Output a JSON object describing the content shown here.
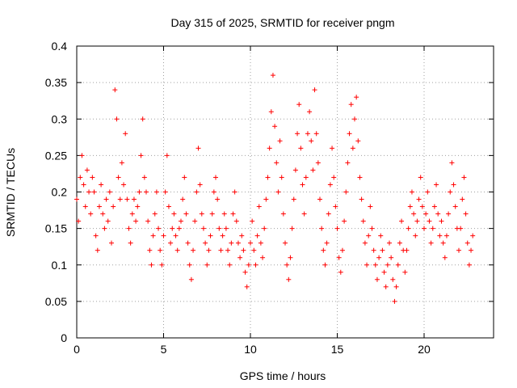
{
  "chart_data": {
    "type": "scatter",
    "title": "Day 315 of 2025, SRMTID for receiver pngm",
    "xlabel": "GPS time / hours",
    "ylabel": "SRMTID / TECUs",
    "xlim": [
      0,
      24
    ],
    "ylim": [
      0,
      0.4
    ],
    "xticks": [
      0,
      5,
      10,
      15,
      20
    ],
    "xtick_labels": [
      "0",
      "5",
      "10",
      "15",
      "20"
    ],
    "yticks": [
      0,
      0.05,
      0.1,
      0.15,
      0.2,
      0.25,
      0.3,
      0.35,
      0.4
    ],
    "ytick_labels": [
      "0",
      "0.05",
      "0.1",
      "0.15",
      "0.2",
      "0.25",
      "0.3",
      "0.35",
      "0.4"
    ],
    "grid": true,
    "marker": "plus",
    "color": "#ff0000",
    "series": [
      {
        "name": "SRMTID",
        "points": [
          [
            0.0,
            0.19
          ],
          [
            0.1,
            0.16
          ],
          [
            0.2,
            0.22
          ],
          [
            0.3,
            0.25
          ],
          [
            0.4,
            0.21
          ],
          [
            0.5,
            0.18
          ],
          [
            0.6,
            0.23
          ],
          [
            0.7,
            0.2
          ],
          [
            0.8,
            0.17
          ],
          [
            0.9,
            0.22
          ],
          [
            1.0,
            0.2
          ],
          [
            1.1,
            0.14
          ],
          [
            1.2,
            0.12
          ],
          [
            1.3,
            0.18
          ],
          [
            1.4,
            0.21
          ],
          [
            1.5,
            0.17
          ],
          [
            1.6,
            0.15
          ],
          [
            1.7,
            0.19
          ],
          [
            1.8,
            0.16
          ],
          [
            1.9,
            0.2
          ],
          [
            2.0,
            0.13
          ],
          [
            2.1,
            0.18
          ],
          [
            2.2,
            0.34
          ],
          [
            2.3,
            0.3
          ],
          [
            2.4,
            0.22
          ],
          [
            2.5,
            0.19
          ],
          [
            2.6,
            0.24
          ],
          [
            2.7,
            0.21
          ],
          [
            2.8,
            0.28
          ],
          [
            2.9,
            0.19
          ],
          [
            3.0,
            0.15
          ],
          [
            3.1,
            0.13
          ],
          [
            3.2,
            0.17
          ],
          [
            3.3,
            0.19
          ],
          [
            3.4,
            0.16
          ],
          [
            3.5,
            0.18
          ],
          [
            3.6,
            0.2
          ],
          [
            3.7,
            0.25
          ],
          [
            3.8,
            0.3
          ],
          [
            3.9,
            0.22
          ],
          [
            4.0,
            0.2
          ],
          [
            4.1,
            0.16
          ],
          [
            4.2,
            0.12
          ],
          [
            4.3,
            0.1
          ],
          [
            4.4,
            0.14
          ],
          [
            4.5,
            0.17
          ],
          [
            4.6,
            0.2
          ],
          [
            4.7,
            0.15
          ],
          [
            4.8,
            0.12
          ],
          [
            4.9,
            0.1
          ],
          [
            5.0,
            0.14
          ],
          [
            5.1,
            0.2
          ],
          [
            5.2,
            0.25
          ],
          [
            5.3,
            0.18
          ],
          [
            5.4,
            0.13
          ],
          [
            5.5,
            0.15
          ],
          [
            5.6,
            0.17
          ],
          [
            5.7,
            0.14
          ],
          [
            5.8,
            0.12
          ],
          [
            5.9,
            0.15
          ],
          [
            6.0,
            0.16
          ],
          [
            6.1,
            0.19
          ],
          [
            6.2,
            0.22
          ],
          [
            6.3,
            0.17
          ],
          [
            6.4,
            0.13
          ],
          [
            6.5,
            0.1
          ],
          [
            6.6,
            0.08
          ],
          [
            6.7,
            0.12
          ],
          [
            6.8,
            0.16
          ],
          [
            6.9,
            0.2
          ],
          [
            7.0,
            0.26
          ],
          [
            7.1,
            0.21
          ],
          [
            7.2,
            0.17
          ],
          [
            7.3,
            0.15
          ],
          [
            7.4,
            0.13
          ],
          [
            7.5,
            0.1
          ],
          [
            7.6,
            0.12
          ],
          [
            7.7,
            0.14
          ],
          [
            7.8,
            0.17
          ],
          [
            7.9,
            0.2
          ],
          [
            8.0,
            0.22
          ],
          [
            8.1,
            0.19
          ],
          [
            8.2,
            0.15
          ],
          [
            8.3,
            0.12
          ],
          [
            8.4,
            0.14
          ],
          [
            8.5,
            0.17
          ],
          [
            8.6,
            0.15
          ],
          [
            8.7,
            0.12
          ],
          [
            8.8,
            0.1
          ],
          [
            8.9,
            0.13
          ],
          [
            9.0,
            0.17
          ],
          [
            9.1,
            0.2
          ],
          [
            9.2,
            0.16
          ],
          [
            9.3,
            0.13
          ],
          [
            9.4,
            0.11
          ],
          [
            9.5,
            0.14
          ],
          [
            9.6,
            0.12
          ],
          [
            9.7,
            0.09
          ],
          [
            9.8,
            0.07
          ],
          [
            9.9,
            0.1
          ],
          [
            10.0,
            0.13
          ],
          [
            10.1,
            0.16
          ],
          [
            10.2,
            0.12
          ],
          [
            10.3,
            0.1
          ],
          [
            10.4,
            0.14
          ],
          [
            10.5,
            0.18
          ],
          [
            10.6,
            0.13
          ],
          [
            10.7,
            0.11
          ],
          [
            10.8,
            0.15
          ],
          [
            10.9,
            0.19
          ],
          [
            11.0,
            0.22
          ],
          [
            11.1,
            0.26
          ],
          [
            11.2,
            0.31
          ],
          [
            11.3,
            0.36
          ],
          [
            11.4,
            0.29
          ],
          [
            11.5,
            0.24
          ],
          [
            11.6,
            0.2
          ],
          [
            11.7,
            0.27
          ],
          [
            11.8,
            0.22
          ],
          [
            11.9,
            0.17
          ],
          [
            12.0,
            0.13
          ],
          [
            12.1,
            0.1
          ],
          [
            12.2,
            0.08
          ],
          [
            12.3,
            0.11
          ],
          [
            12.4,
            0.15
          ],
          [
            12.5,
            0.19
          ],
          [
            12.6,
            0.23
          ],
          [
            12.7,
            0.28
          ],
          [
            12.8,
            0.32
          ],
          [
            12.9,
            0.26
          ],
          [
            13.0,
            0.21
          ],
          [
            13.1,
            0.17
          ],
          [
            13.2,
            0.22
          ],
          [
            13.3,
            0.28
          ],
          [
            13.4,
            0.31
          ],
          [
            13.5,
            0.27
          ],
          [
            13.6,
            0.23
          ],
          [
            13.7,
            0.34
          ],
          [
            13.8,
            0.28
          ],
          [
            13.9,
            0.24
          ],
          [
            14.0,
            0.19
          ],
          [
            14.1,
            0.15
          ],
          [
            14.2,
            0.12
          ],
          [
            14.3,
            0.1
          ],
          [
            14.4,
            0.13
          ],
          [
            14.5,
            0.17
          ],
          [
            14.6,
            0.21
          ],
          [
            14.7,
            0.26
          ],
          [
            14.8,
            0.22
          ],
          [
            14.9,
            0.18
          ],
          [
            15.0,
            0.15
          ],
          [
            15.1,
            0.11
          ],
          [
            15.2,
            0.09
          ],
          [
            15.3,
            0.12
          ],
          [
            15.4,
            0.16
          ],
          [
            15.5,
            0.2
          ],
          [
            15.6,
            0.24
          ],
          [
            15.7,
            0.28
          ],
          [
            15.8,
            0.32
          ],
          [
            15.9,
            0.26
          ],
          [
            16.0,
            0.3
          ],
          [
            16.1,
            0.33
          ],
          [
            16.2,
            0.27
          ],
          [
            16.3,
            0.22
          ],
          [
            16.4,
            0.19
          ],
          [
            16.5,
            0.16
          ],
          [
            16.6,
            0.13
          ],
          [
            16.7,
            0.1
          ],
          [
            16.8,
            0.14
          ],
          [
            16.9,
            0.18
          ],
          [
            17.0,
            0.15
          ],
          [
            17.1,
            0.12
          ],
          [
            17.2,
            0.1
          ],
          [
            17.3,
            0.08
          ],
          [
            17.4,
            0.11
          ],
          [
            17.5,
            0.14
          ],
          [
            17.6,
            0.12
          ],
          [
            17.7,
            0.09
          ],
          [
            17.8,
            0.07
          ],
          [
            17.9,
            0.1
          ],
          [
            18.0,
            0.13
          ],
          [
            18.1,
            0.11
          ],
          [
            18.2,
            0.08
          ],
          [
            18.3,
            0.05
          ],
          [
            18.4,
            0.07
          ],
          [
            18.5,
            0.1
          ],
          [
            18.6,
            0.13
          ],
          [
            18.7,
            0.16
          ],
          [
            18.8,
            0.12
          ],
          [
            18.9,
            0.09
          ],
          [
            19.0,
            0.12
          ],
          [
            19.1,
            0.15
          ],
          [
            19.2,
            0.18
          ],
          [
            19.3,
            0.2
          ],
          [
            19.4,
            0.17
          ],
          [
            19.5,
            0.14
          ],
          [
            19.6,
            0.16
          ],
          [
            19.7,
            0.19
          ],
          [
            19.8,
            0.22
          ],
          [
            19.9,
            0.18
          ],
          [
            20.0,
            0.15
          ],
          [
            20.1,
            0.17
          ],
          [
            20.2,
            0.2
          ],
          [
            20.3,
            0.16
          ],
          [
            20.4,
            0.13
          ],
          [
            20.5,
            0.15
          ],
          [
            20.6,
            0.18
          ],
          [
            20.7,
            0.21
          ],
          [
            20.8,
            0.17
          ],
          [
            20.9,
            0.14
          ],
          [
            21.0,
            0.16
          ],
          [
            21.1,
            0.13
          ],
          [
            21.2,
            0.11
          ],
          [
            21.3,
            0.14
          ],
          [
            21.4,
            0.17
          ],
          [
            21.5,
            0.2
          ],
          [
            21.6,
            0.24
          ],
          [
            21.7,
            0.21
          ],
          [
            21.8,
            0.18
          ],
          [
            21.9,
            0.15
          ],
          [
            22.0,
            0.12
          ],
          [
            22.1,
            0.15
          ],
          [
            22.2,
            0.19
          ],
          [
            22.3,
            0.22
          ],
          [
            22.4,
            0.17
          ],
          [
            22.5,
            0.13
          ],
          [
            22.6,
            0.1
          ],
          [
            22.7,
            0.12
          ],
          [
            22.8,
            0.14
          ]
        ]
      }
    ]
  }
}
